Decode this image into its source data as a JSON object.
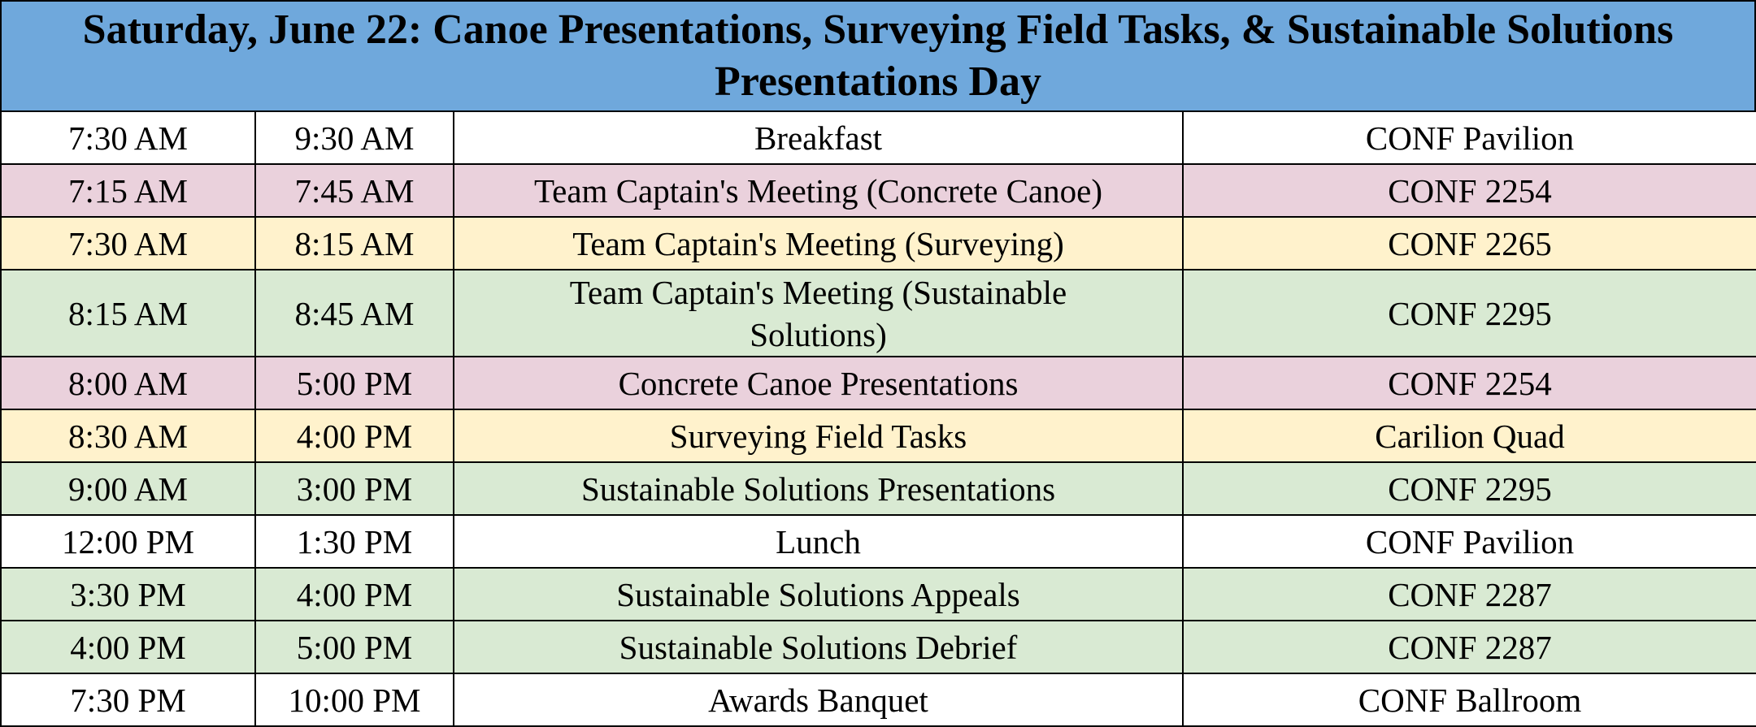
{
  "title": "Saturday, June 22: Canoe Presentations, Surveying Field Tasks, & Sustainable Solutions Presentations Day",
  "colors": {
    "header": "#6fa8dc",
    "white": "#ffffff",
    "pink": "#ead1dc",
    "yellow": "#fff2cc",
    "green": "#d9ead3"
  },
  "rows": [
    {
      "start": "7:30 AM",
      "end": "9:30 AM",
      "event": "Breakfast",
      "location": "CONF Pavilion",
      "color": "white"
    },
    {
      "start": "7:15 AM",
      "end": "7:45 AM",
      "event": "Team Captain's Meeting (Concrete Canoe)",
      "location": "CONF 2254",
      "color": "pink"
    },
    {
      "start": "7:30 AM",
      "end": "8:15 AM",
      "event": "Team Captain's Meeting (Surveying)",
      "location": "CONF 2265",
      "color": "yellow"
    },
    {
      "start": "8:15 AM",
      "end": "8:45 AM",
      "event": "Team Captain's Meeting (Sustainable Solutions)",
      "location": "CONF 2295",
      "color": "green"
    },
    {
      "start": "8:00 AM",
      "end": "5:00 PM",
      "event": "Concrete Canoe Presentations",
      "location": "CONF 2254",
      "color": "pink"
    },
    {
      "start": "8:30 AM",
      "end": "4:00 PM",
      "event": "Surveying Field Tasks",
      "location": "Carilion Quad",
      "color": "yellow"
    },
    {
      "start": "9:00 AM",
      "end": "3:00 PM",
      "event": "Sustainable Solutions Presentations",
      "location": "CONF 2295",
      "color": "green"
    },
    {
      "start": "12:00 PM",
      "end": "1:30 PM",
      "event": "Lunch",
      "location": "CONF Pavilion",
      "color": "white"
    },
    {
      "start": "3:30 PM",
      "end": "4:00 PM",
      "event": "Sustainable Solutions Appeals",
      "location": "CONF 2287",
      "color": "green"
    },
    {
      "start": "4:00 PM",
      "end": "5:00 PM",
      "event": "Sustainable Solutions Debrief",
      "location": "CONF 2287",
      "color": "green"
    },
    {
      "start": "7:30 PM",
      "end": "10:00 PM",
      "event": "Awards Banquet",
      "location": "CONF Ballroom",
      "color": "white"
    }
  ]
}
